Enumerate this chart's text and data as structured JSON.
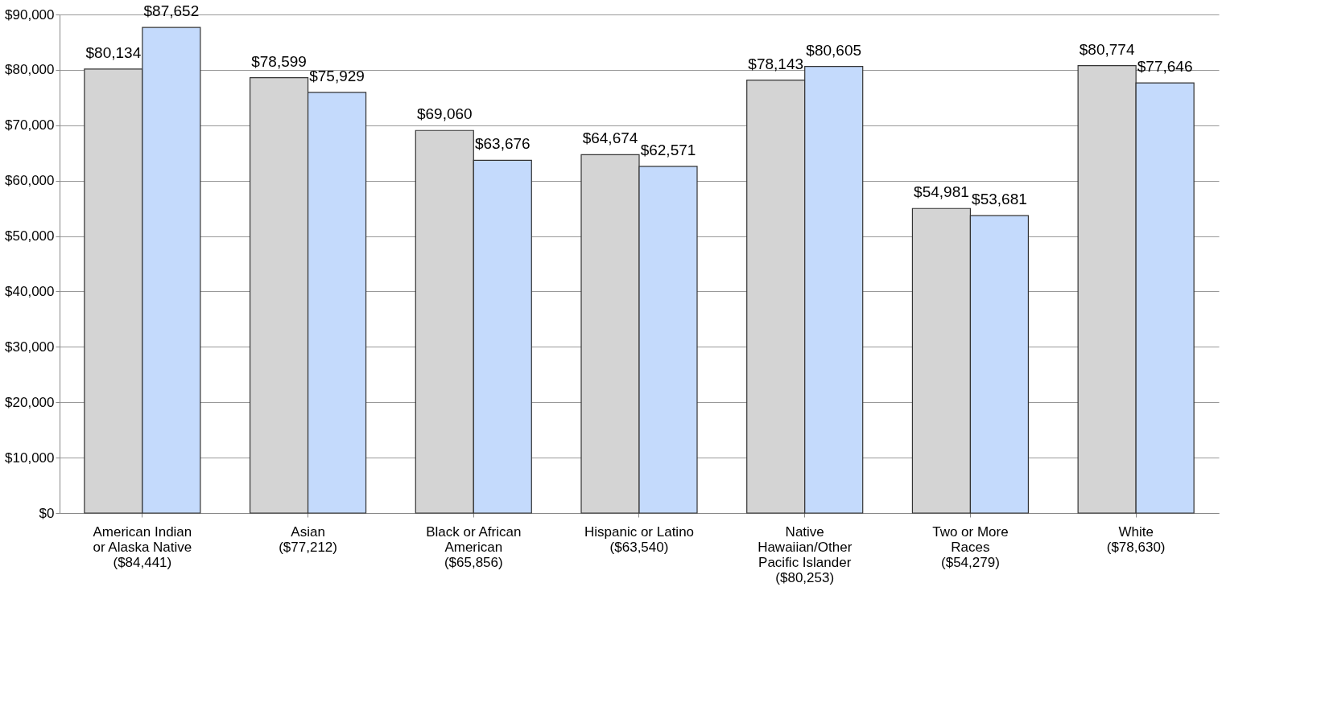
{
  "chart_data": {
    "type": "bar",
    "categories": [
      "American Indian\nor Alaska Native\n($84,441)",
      "Asian\n($77,212)",
      "Black or African\nAmerican\n($65,856)",
      "Hispanic or Latino\n($63,540)",
      "Native\nHawaiian/Other\nPacific Islander\n($80,253)",
      "Two or More\nRaces\n($54,279)",
      "White\n($78,630)"
    ],
    "series": [
      {
        "color": "#d4d4d4",
        "values": [
          80134,
          78599,
          69060,
          64674,
          78143,
          54981,
          80774
        ],
        "value_labels": [
          "$80,134",
          "$78,599",
          "$69,060",
          "$64,674",
          "$78,143",
          "$54,981",
          "$80,774"
        ]
      },
      {
        "color": "#c4dafc",
        "values": [
          87652,
          75929,
          63676,
          62571,
          80605,
          53681,
          77646
        ],
        "value_labels": [
          "$87,652",
          "$75,929",
          "$63,676",
          "$62,571",
          "$80,605",
          "$53,681",
          "$77,646"
        ]
      }
    ],
    "ylim": [
      0,
      90000
    ],
    "yticks": [
      {
        "value": 0,
        "label": "$0"
      },
      {
        "value": 10000,
        "label": "$10,000"
      },
      {
        "value": 20000,
        "label": "$20,000"
      },
      {
        "value": 30000,
        "label": "$30,000"
      },
      {
        "value": 40000,
        "label": "$40,000"
      },
      {
        "value": 50000,
        "label": "$50,000"
      },
      {
        "value": 60000,
        "label": "$60,000"
      },
      {
        "value": 70000,
        "label": "$70,000"
      },
      {
        "value": 80000,
        "label": "$80,000"
      },
      {
        "value": 90000,
        "label": "$90,000"
      }
    ],
    "grid": "y",
    "legend": false
  }
}
